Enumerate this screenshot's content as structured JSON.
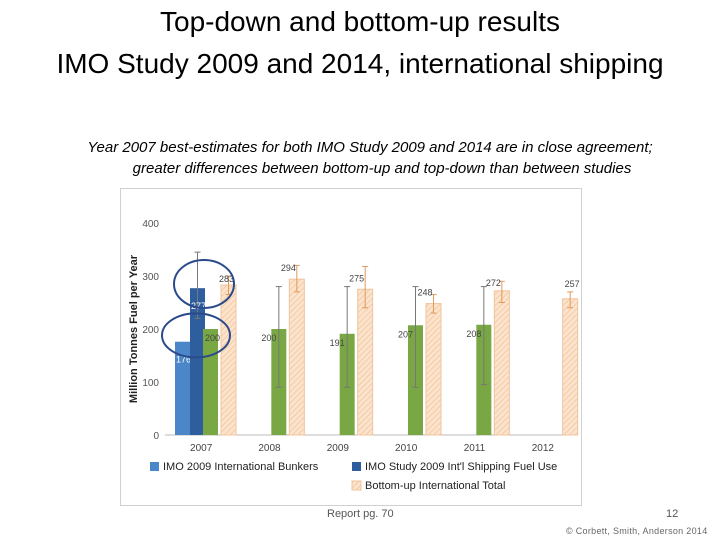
{
  "slide": {
    "title_line1": "Top-down and bottom-up results",
    "title_line2": "IMO Study 2009 and 2014, international shipping",
    "subtitle_line1": "Year 2007 best-estimates for both IMO Study 2009 and 2014 are in close agreement;",
    "subtitle_line2": "greater differences between bottom-up and top-down than between studies",
    "report_ref": "Report pg. 70",
    "page_number": "12",
    "copyright": "© Corbett, Smith, Anderson 2014"
  },
  "chart_data": {
    "type": "bar",
    "title": "",
    "xlabel": "",
    "ylabel": "Million Tonnes Fuel per Year",
    "ylim": [
      0,
      400
    ],
    "yticks": [
      0,
      100,
      200,
      300,
      400
    ],
    "categories": [
      "2007",
      "2008",
      "2009",
      "2010",
      "2011",
      "2012"
    ],
    "grid": false,
    "legend_position": "bottom",
    "series": [
      {
        "name": "IMO 2009 International Bunkers",
        "color": "#4a86c8",
        "values": [
          176,
          null,
          null,
          null,
          null,
          null
        ],
        "labels": [
          "176",
          "",
          "",
          "",
          "",
          ""
        ],
        "error": [
          null,
          null,
          null,
          null,
          null,
          null
        ]
      },
      {
        "name": "IMO Study 2009 Int'l Shipping Fuel Use",
        "color": "#2e5e9e",
        "values": [
          277,
          null,
          null,
          null,
          null,
          null
        ],
        "labels": [
          "277",
          "",
          "",
          "",
          "",
          ""
        ],
        "error": [
          [
            220,
            345
          ],
          null,
          null,
          null,
          null,
          null
        ]
      },
      {
        "name": "",
        "color": "#78a743",
        "values": [
          200,
          200,
          191,
          207,
          208,
          null
        ],
        "labels": [
          "200",
          "200",
          "191",
          "207",
          "208",
          ""
        ],
        "error": [
          null,
          [
            90,
            280
          ],
          [
            90,
            280
          ],
          [
            90,
            280
          ],
          [
            95,
            280
          ],
          null
        ]
      },
      {
        "name": "Bottom-up International Total",
        "color": "#f7d3b0",
        "values": [
          283,
          294,
          275,
          248,
          272,
          257
        ],
        "labels": [
          "283",
          "294",
          "275",
          "248",
          "272",
          "257"
        ],
        "error": [
          [
            265,
            300
          ],
          [
            270,
            320
          ],
          [
            240,
            318
          ],
          [
            230,
            265
          ],
          [
            250,
            290
          ],
          [
            240,
            270
          ]
        ]
      }
    ],
    "highlight_circles": [
      {
        "category": "2007",
        "around": "277"
      },
      {
        "category": "2007",
        "around": "200"
      }
    ]
  }
}
